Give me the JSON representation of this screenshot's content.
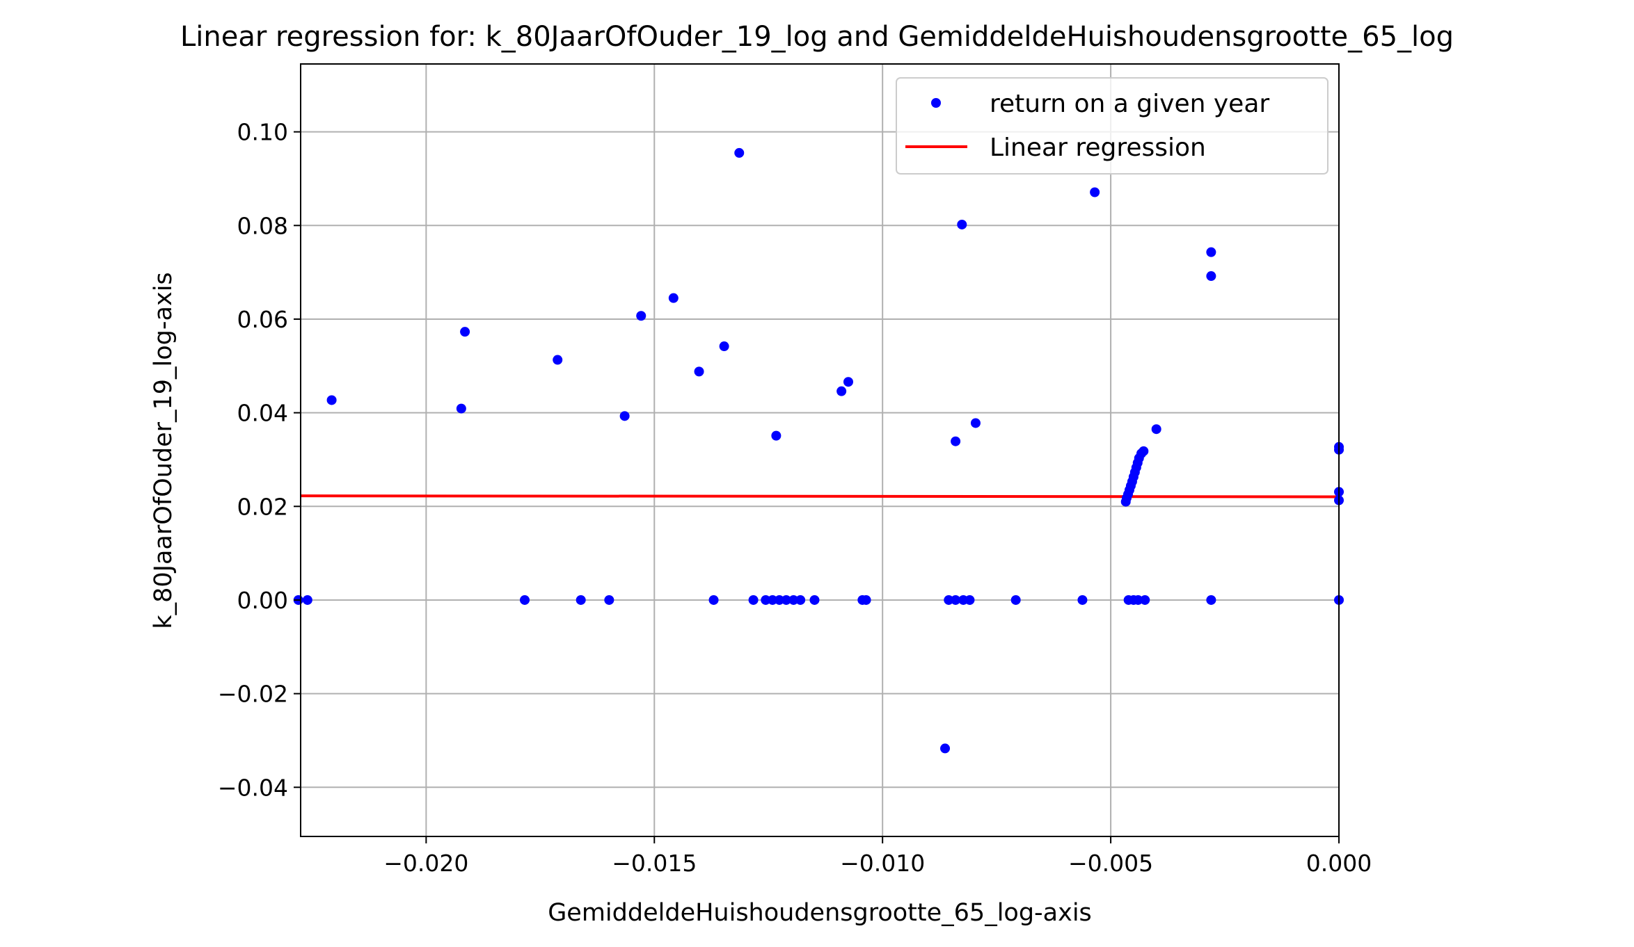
{
  "chart_data": {
    "type": "scatter",
    "title": "Linear regression for: k_80JaarOfOuder_19_log and GemiddeldeHuishoudensgrootte_65_log",
    "xlabel": "GemiddeldeHuishoudensgrootte_65_log-axis",
    "ylabel": "k_80JaarOfOuder_19_log-axis",
    "xlim": [
      -0.02275,
      0.0
    ],
    "ylim": [
      -0.0505,
      0.1145
    ],
    "x_ticks": [
      -0.02,
      -0.015,
      -0.01,
      -0.005,
      0.0
    ],
    "x_tick_labels": [
      "−0.020",
      "−0.015",
      "−0.010",
      "−0.005",
      "0.000"
    ],
    "y_ticks": [
      -0.04,
      -0.02,
      0.0,
      0.02,
      0.04,
      0.06,
      0.08,
      0.1
    ],
    "y_tick_labels": [
      "−0.04",
      "−0.02",
      "0.00",
      "0.02",
      "0.04",
      "0.06",
      "0.08",
      "0.10"
    ],
    "grid": true,
    "legend_position": "top-right",
    "series": [
      {
        "name": "return on a given year",
        "kind": "scatter",
        "color": "#0000ff",
        "points": [
          [
            -0.0228,
            0.0
          ],
          [
            -0.0226,
            0.0
          ],
          [
            -0.02207,
            0.0427
          ],
          [
            -0.01923,
            0.0409
          ],
          [
            -0.01915,
            0.0573
          ],
          [
            -0.01784,
            0.0
          ],
          [
            -0.01712,
            0.0513
          ],
          [
            -0.01661,
            0.0
          ],
          [
            -0.01599,
            0.0
          ],
          [
            -0.01565,
            0.0393
          ],
          [
            -0.01529,
            0.0607
          ],
          [
            -0.01458,
            0.0645
          ],
          [
            -0.01402,
            0.0488
          ],
          [
            -0.0137,
            0.0
          ],
          [
            -0.01347,
            0.0542
          ],
          [
            -0.01314,
            0.0955
          ],
          [
            -0.01283,
            0.0
          ],
          [
            -0.01256,
            0.0
          ],
          [
            -0.01241,
            0.0
          ],
          [
            -0.01233,
            0.0351
          ],
          [
            -0.01226,
            0.0
          ],
          [
            -0.01211,
            0.0
          ],
          [
            -0.01195,
            0.0
          ],
          [
            -0.0118,
            0.0
          ],
          [
            -0.01149,
            0.0
          ],
          [
            -0.0109,
            0.0446
          ],
          [
            -0.01075,
            0.0466
          ],
          [
            -0.01044,
            0.0
          ],
          [
            -0.01036,
            0.0
          ],
          [
            -0.00863,
            -0.0317
          ],
          [
            -0.00855,
            0.0
          ],
          [
            -0.0084,
            0.0339
          ],
          [
            -0.0084,
            0.0
          ],
          [
            -0.00826,
            0.0802
          ],
          [
            -0.00823,
            0.0
          ],
          [
            -0.00809,
            0.0
          ],
          [
            -0.00796,
            0.0378
          ],
          [
            -0.00708,
            0.0
          ],
          [
            -0.00562,
            0.0
          ],
          [
            -0.00535,
            0.0871
          ],
          [
            -0.00467,
            0.021
          ],
          [
            -0.00465,
            0.0218
          ],
          [
            -0.00462,
            0.0226
          ],
          [
            -0.00459,
            0.0235
          ],
          [
            -0.00456,
            0.0244
          ],
          [
            -0.00453,
            0.0253
          ],
          [
            -0.0045,
            0.0263
          ],
          [
            -0.00447,
            0.0273
          ],
          [
            -0.00444,
            0.0283
          ],
          [
            -0.00441,
            0.0293
          ],
          [
            -0.00438,
            0.0303
          ],
          [
            -0.00433,
            0.0313
          ],
          [
            -0.00428,
            0.0318
          ],
          [
            -0.00461,
            0.0
          ],
          [
            -0.0045,
            0.0
          ],
          [
            -0.0044,
            0.0
          ],
          [
            -0.00425,
            0.0
          ],
          [
            -0.004,
            0.0365
          ],
          [
            -0.0028,
            0.0743
          ],
          [
            -0.0028,
            0.0692
          ],
          [
            -0.0028,
            0.0
          ],
          [
            0.0,
            0.0327
          ],
          [
            0.0,
            0.0321
          ],
          [
            0.0,
            0.0231
          ],
          [
            0.0,
            0.0213
          ],
          [
            0.0,
            0.0
          ]
        ]
      },
      {
        "name": "Linear regression",
        "kind": "line",
        "color": "#ff0000",
        "points": [
          [
            -0.02275,
            0.02225
          ],
          [
            0.0,
            0.02205
          ]
        ]
      }
    ]
  }
}
